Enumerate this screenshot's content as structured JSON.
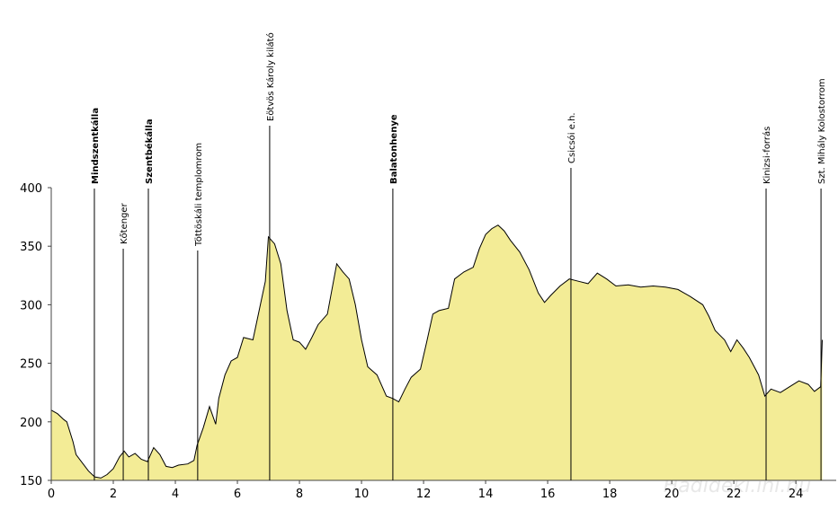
{
  "chart_data": {
    "type": "area",
    "x": [
      0,
      0.2,
      0.4,
      0.5,
      0.7,
      0.8,
      1.0,
      1.2,
      1.4,
      1.6,
      1.8,
      2.0,
      2.2,
      2.35,
      2.5,
      2.7,
      2.9,
      3.1,
      3.3,
      3.5,
      3.7,
      3.9,
      4.1,
      4.4,
      4.6,
      4.7,
      4.9,
      5.1,
      5.3,
      5.4,
      5.6,
      5.8,
      6.0,
      6.2,
      6.5,
      6.7,
      6.9,
      7.0,
      7.2,
      7.4,
      7.6,
      7.8,
      8.0,
      8.2,
      8.4,
      8.6,
      8.9,
      9.2,
      9.4,
      9.6,
      9.8,
      10.0,
      10.2,
      10.5,
      10.8,
      11.0,
      11.2,
      11.4,
      11.6,
      11.9,
      12.1,
      12.3,
      12.5,
      12.8,
      13.0,
      13.3,
      13.6,
      13.8,
      14.0,
      14.2,
      14.4,
      14.6,
      14.8,
      15.1,
      15.4,
      15.7,
      15.9,
      16.1,
      16.4,
      16.7,
      17.0,
      17.3,
      17.6,
      17.9,
      18.2,
      18.6,
      19.0,
      19.4,
      19.8,
      20.2,
      20.6,
      21.0,
      21.2,
      21.4,
      21.7,
      21.9,
      22.1,
      22.3,
      22.5,
      22.8,
      23.0,
      23.2,
      23.5,
      23.8,
      24.1,
      24.4,
      24.6,
      24.8,
      24.85
    ],
    "values": [
      210,
      207,
      202,
      200,
      183,
      172,
      165,
      158,
      153,
      152,
      155,
      160,
      170,
      175,
      170,
      173,
      168,
      166,
      178,
      172,
      162,
      161,
      163,
      164,
      167,
      180,
      195,
      213,
      198,
      220,
      240,
      252,
      255,
      272,
      270,
      295,
      320,
      358,
      352,
      335,
      295,
      270,
      268,
      262,
      272,
      283,
      292,
      335,
      328,
      322,
      300,
      270,
      247,
      240,
      222,
      220,
      217,
      228,
      238,
      245,
      268,
      292,
      295,
      297,
      322,
      328,
      332,
      348,
      360,
      365,
      368,
      363,
      355,
      345,
      330,
      310,
      302,
      308,
      316,
      322,
      320,
      318,
      327,
      322,
      316,
      317,
      315,
      316,
      315,
      313,
      307,
      300,
      290,
      278,
      270,
      260,
      270,
      263,
      255,
      240,
      222,
      228,
      225,
      230,
      235,
      232,
      226,
      230,
      270
    ],
    "color": "#f3ec96",
    "xlim": [
      0,
      25.3
    ],
    "xticks": [
      0,
      2,
      4,
      6,
      8,
      10,
      12,
      14,
      16,
      18,
      20,
      22,
      24
    ],
    "ylim": [
      150,
      400
    ],
    "yticks": [
      150,
      200,
      250,
      300,
      350,
      400
    ],
    "annotations": [
      {
        "x": 1.39,
        "label": "Mindszentkálla",
        "bold": true
      },
      {
        "x": 2.32,
        "label": "Kőtenger",
        "bold": false
      },
      {
        "x": 3.13,
        "label": "Szentbékálla",
        "bold": true
      },
      {
        "x": 4.72,
        "label": "Töttöskáli templomrom",
        "bold": false
      },
      {
        "x": 7.04,
        "label": "Eötvös Károly kilátó",
        "bold": false
      },
      {
        "x": 11.01,
        "label": "Balatonhenye",
        "bold": true
      },
      {
        "x": 16.75,
        "label": "Csicsói e.h.",
        "bold": false
      },
      {
        "x": 23.04,
        "label": "Kinizsi-forrás",
        "bold": false
      },
      {
        "x": 24.81,
        "label": "Szt. Mihály Kolostorrom",
        "bold": false
      }
    ],
    "watermark": "Hadideki.ini.hu"
  }
}
